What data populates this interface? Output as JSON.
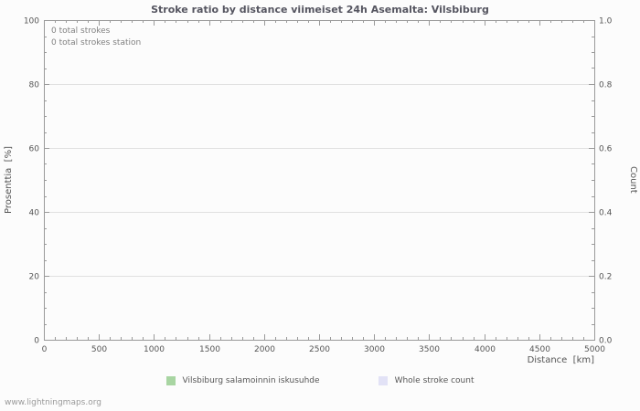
{
  "title": "Stroke ratio by distance viimeiset 24h Asemalta: Vilsbiburg",
  "annotations": {
    "line1": "0 total strokes",
    "line2": "0 total strokes station"
  },
  "axes": {
    "left_label": "Prosenttia  [%]",
    "right_label": "Count",
    "x_label": "Distance  [km]"
  },
  "legend": [
    {
      "label": "Vilsbiburg salamoinnin iskusuhde",
      "color": "#a8d5a2"
    },
    {
      "label": "Whole stroke count",
      "color": "#e2e2f6"
    }
  ],
  "watermark": "www.lightningmaps.org",
  "colors": {
    "grid": "#e0e0e0",
    "axis": "#9a9a9a",
    "background": "#fcfcfc"
  },
  "chart_data": {
    "type": "line",
    "title": "Stroke ratio by distance viimeiset 24h Asemalta: Vilsbiburg",
    "total_strokes": 0,
    "total_strokes_station": 0,
    "grid": true,
    "legend_position": "bottom",
    "x_axis": {
      "label": "Distance [km]",
      "range": [
        0,
        5000
      ],
      "ticks": [
        0,
        500,
        1000,
        1500,
        2000,
        2500,
        3000,
        3500,
        4000,
        4500,
        5000
      ],
      "major_step": 500,
      "minor_step": 100
    },
    "y_left": {
      "label": "Prosenttia [%]",
      "range": [
        0,
        100
      ],
      "ticks": [
        0,
        20,
        40,
        60,
        80,
        100
      ],
      "major_step": 20,
      "minor_step": 5
    },
    "y_right": {
      "label": "Count",
      "range": [
        0,
        1
      ],
      "ticks": [
        0,
        0.2,
        0.4,
        0.6,
        0.8,
        1
      ],
      "tick_labels": [
        "0.0",
        "0.2",
        "0.4",
        "0.6",
        "0.8",
        "1.0"
      ],
      "major_step": 0.2,
      "minor_step": 0.05
    },
    "series": [
      {
        "name": "Vilsbiburg salamoinnin iskusuhde",
        "axis": "left",
        "color": "#a8d5a2",
        "x": [],
        "values": []
      },
      {
        "name": "Whole stroke count",
        "axis": "right",
        "color": "#e2e2f6",
        "x": [],
        "values": []
      }
    ]
  }
}
